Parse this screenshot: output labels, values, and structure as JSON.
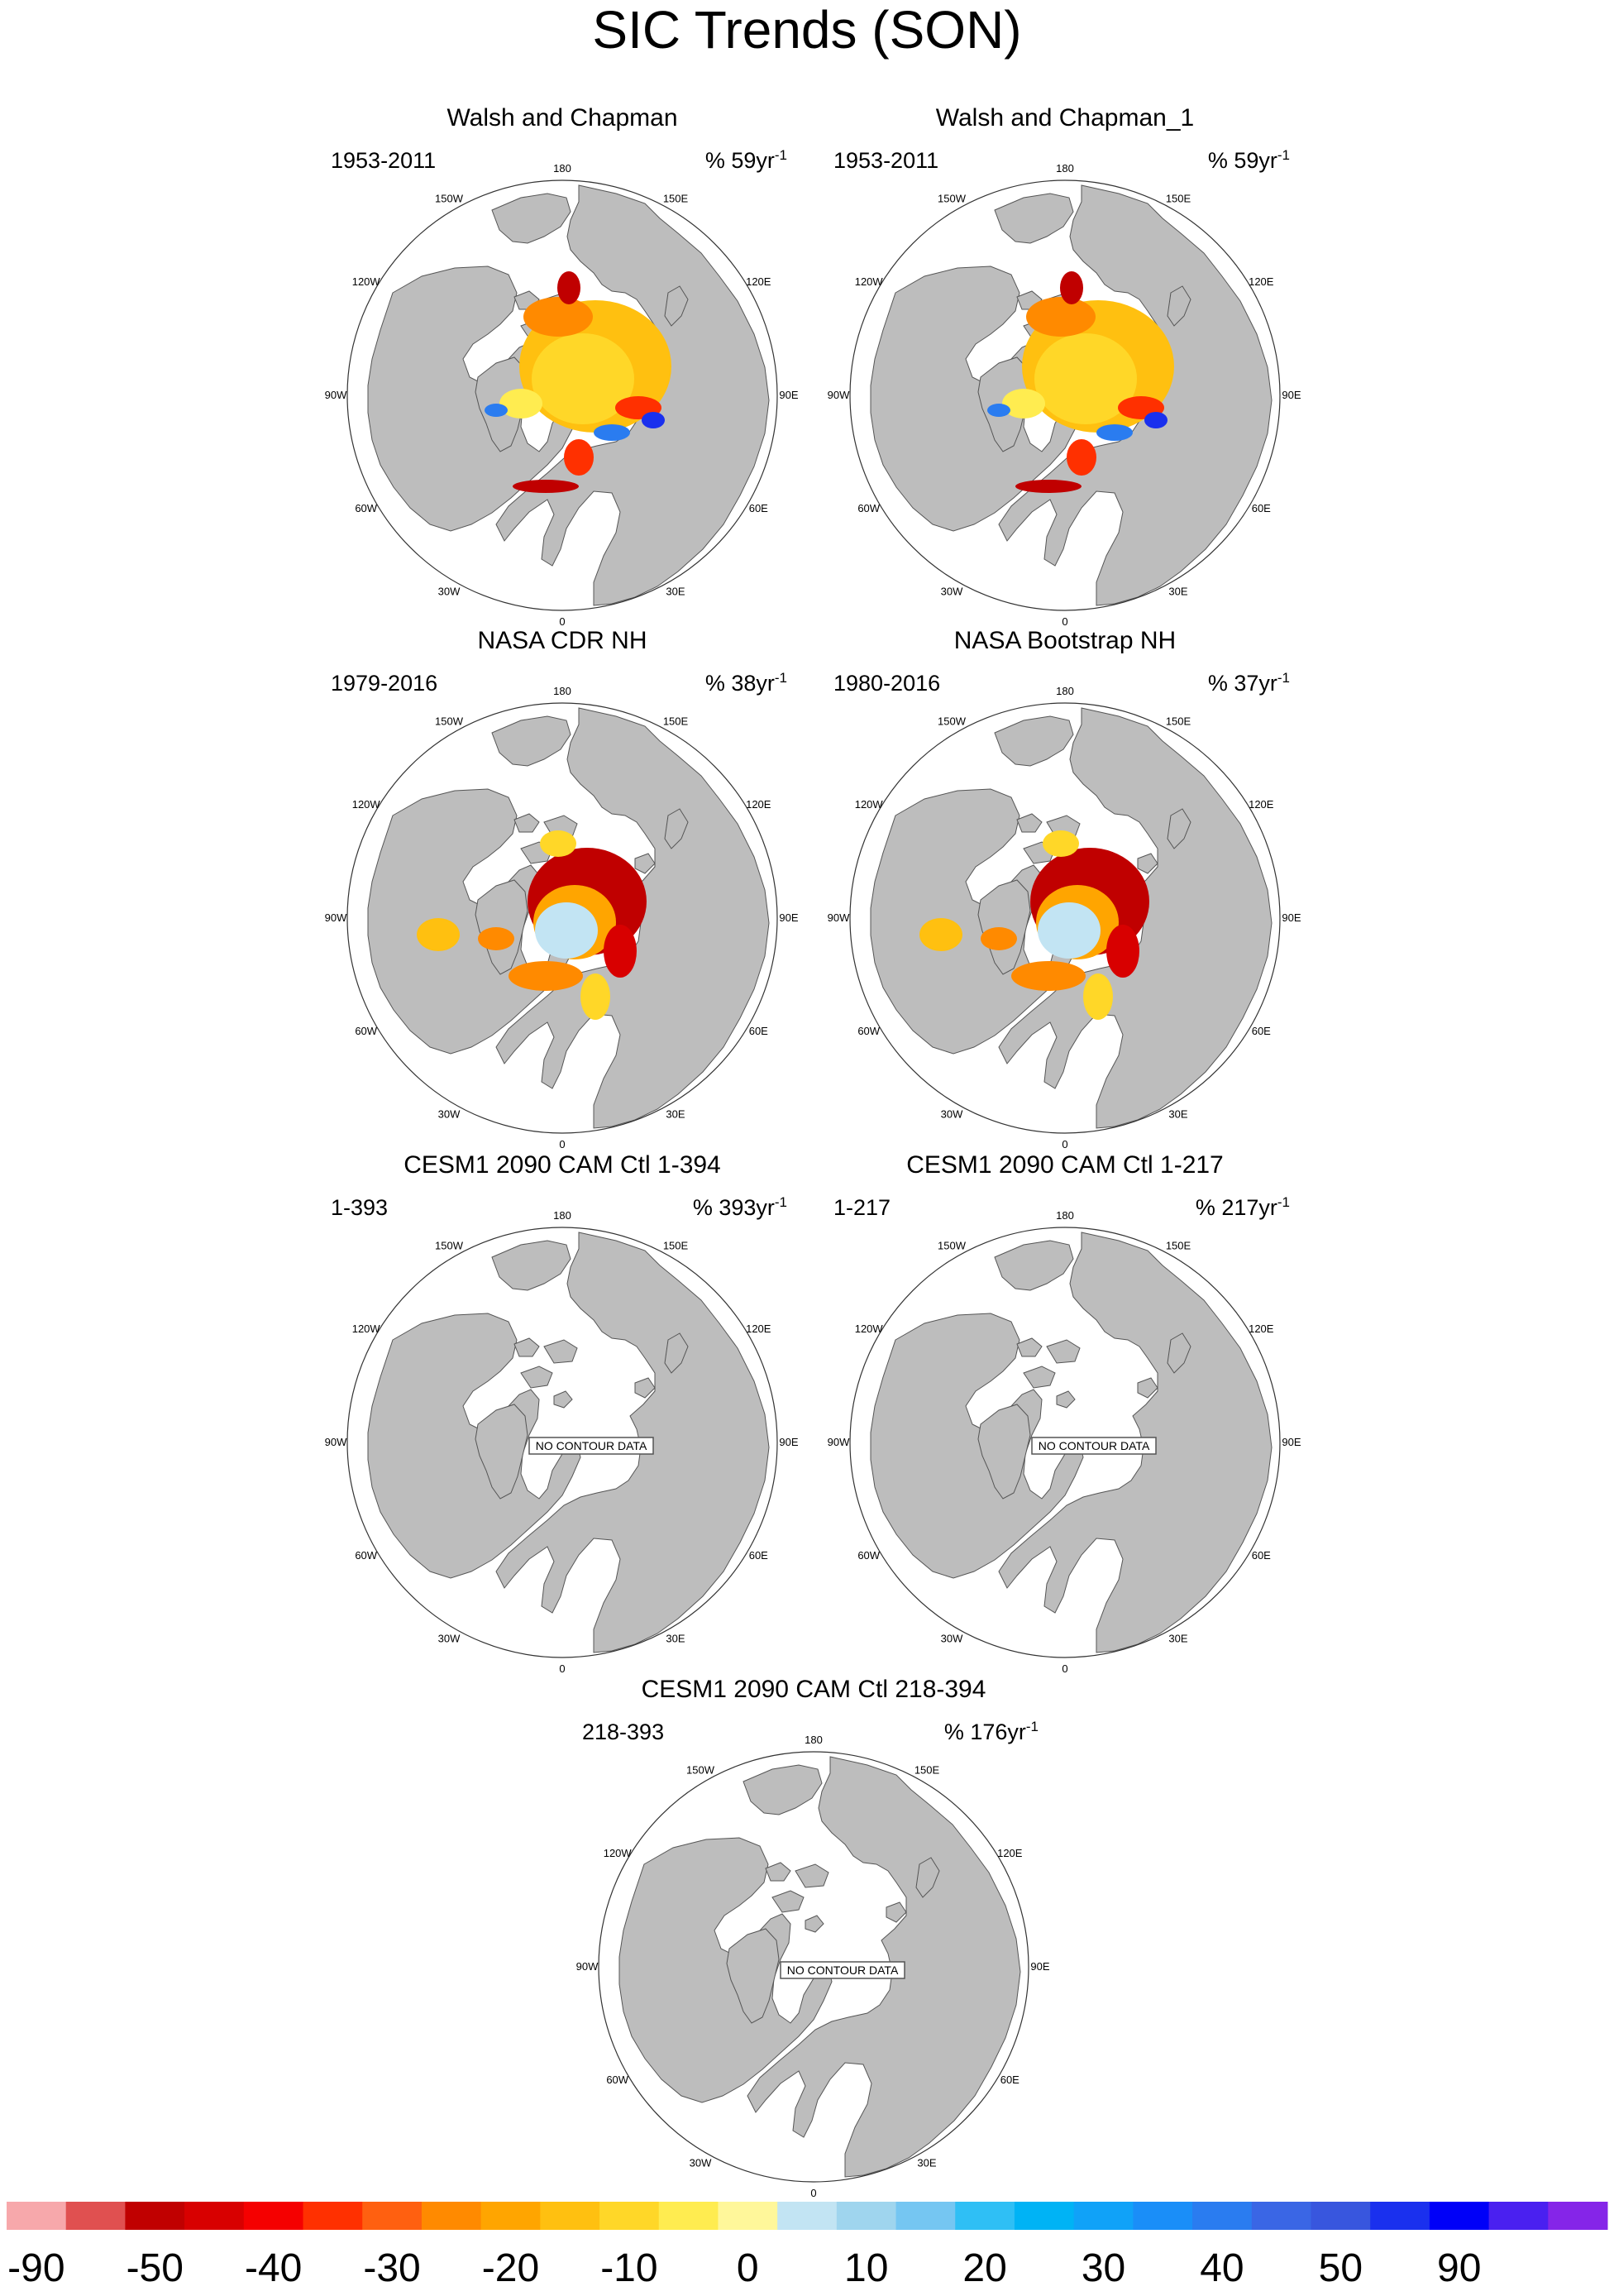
{
  "title": "SIC Trends (SON)",
  "longitude_labels": [
    "180",
    "150E",
    "120E",
    "90E",
    "60E",
    "30E",
    "0",
    "30W",
    "60W",
    "90W",
    "120W",
    "150W"
  ],
  "no_data_text": "NO CONTOUR DATA",
  "rate_unit": "yr",
  "rate_exponent": "-1",
  "colors": {
    "land": "#bdbdbd",
    "ocean": "#ffffff",
    "outline": "#555555"
  },
  "panels": [
    {
      "title": "Walsh and Chapman",
      "period": "1953-2011",
      "rate": "% 59",
      "has_data": true,
      "pattern": "walsh"
    },
    {
      "title": "Walsh and Chapman_1",
      "period": "1953-2011",
      "rate": "% 59",
      "has_data": true,
      "pattern": "walsh"
    },
    {
      "title": "NASA CDR NH",
      "period": "1979-2016",
      "rate": "% 38",
      "has_data": true,
      "pattern": "nasa"
    },
    {
      "title": "NASA Bootstrap NH",
      "period": "1980-2016",
      "rate": "% 37",
      "has_data": true,
      "pattern": "nasa"
    },
    {
      "title": "CESM1 2090 CAM Ctl 1-394",
      "period": "1-393",
      "rate": "% 393",
      "has_data": false,
      "pattern": "none"
    },
    {
      "title": "CESM1 2090 CAM Ctl 1-217",
      "period": "1-217",
      "rate": "% 217",
      "has_data": false,
      "pattern": "none"
    },
    {
      "title": "CESM1 2090 CAM Ctl 218-394",
      "period": "218-393",
      "rate": "% 176",
      "has_data": false,
      "pattern": "none"
    }
  ],
  "colorbar": {
    "colors": [
      "#f7a8ab",
      "#e05050",
      "#c00000",
      "#d80000",
      "#f50000",
      "#ff3000",
      "#ff6010",
      "#ff8a00",
      "#ffa500",
      "#ffc010",
      "#ffd728",
      "#ffec50",
      "#fff79a",
      "#c2e4f3",
      "#9fd5ee",
      "#75c6f2",
      "#2fbff5",
      "#00b3f5",
      "#10a2f8",
      "#1a8ef8",
      "#2a7cf0",
      "#3a66e5",
      "#3856de",
      "#1a30ee",
      "#0000f8",
      "#4a20f0",
      "#8525e8"
    ],
    "labels": [
      "-90",
      "-50",
      "-40",
      "-30",
      "-20",
      "-10",
      "0",
      "10",
      "20",
      "30",
      "40",
      "50",
      "90"
    ]
  }
}
